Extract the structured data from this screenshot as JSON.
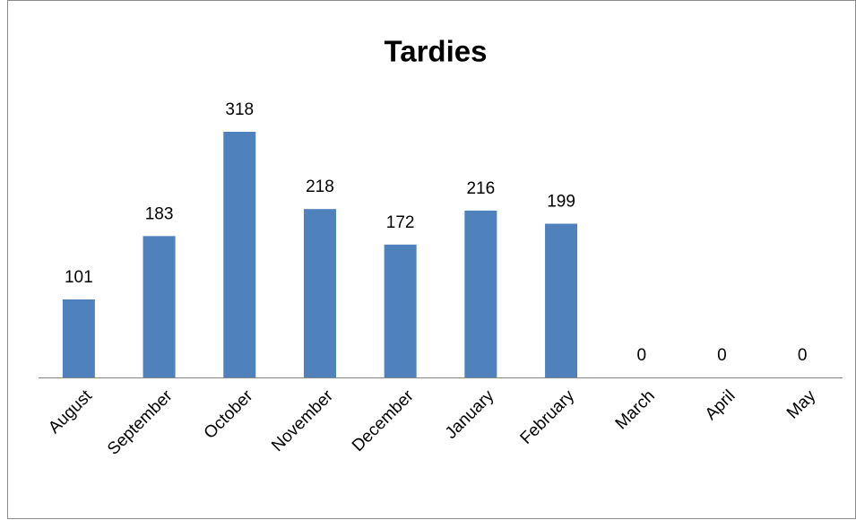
{
  "chart_data": {
    "type": "bar",
    "title": "Tardies",
    "categories": [
      "August",
      "September",
      "October",
      "November",
      "December",
      "January",
      "February",
      "March",
      "April",
      "May"
    ],
    "values": [
      101,
      183,
      318,
      218,
      172,
      216,
      199,
      0,
      0,
      0
    ],
    "color": "#4f81bd"
  }
}
